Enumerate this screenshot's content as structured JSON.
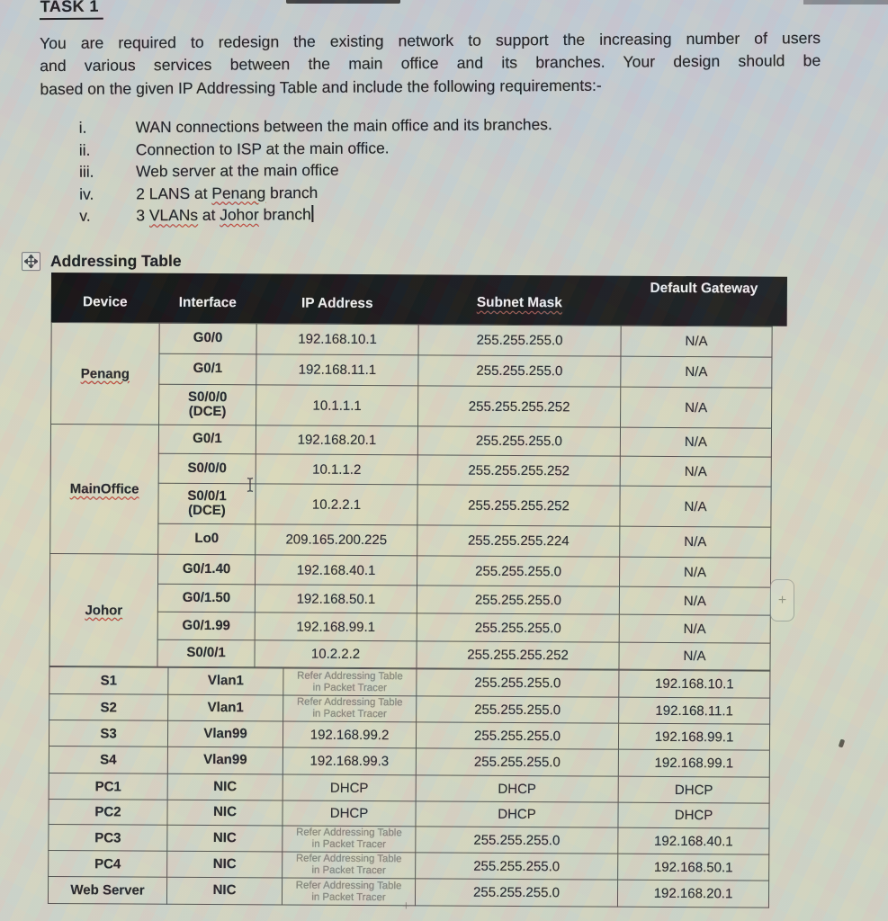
{
  "document": {
    "title": "TASK 1",
    "intro_lines": [
      "You are required to redesign the existing network to support the increasing number of users",
      "and various services between the main office and its branches. Your design should be",
      "based on the given IP Addressing Table and include the following requirements:-"
    ],
    "requirements": [
      {
        "numeral": "i.",
        "segments": [
          {
            "text": "WAN connections between the main office and its branches."
          }
        ]
      },
      {
        "numeral": "ii.",
        "segments": [
          {
            "text": "Connection to ISP at the main office."
          }
        ]
      },
      {
        "numeral": "iii.",
        "segments": [
          {
            "text": "Web server at the main office"
          }
        ]
      },
      {
        "numeral": "iv.",
        "segments": [
          {
            "text": "2 LANS at "
          },
          {
            "text": "Penang",
            "spellcheck": true
          },
          {
            "text": " branch"
          }
        ]
      },
      {
        "numeral": "v.",
        "segments": [
          {
            "text": "3 "
          },
          {
            "text": "VLANs",
            "spellcheck": true
          },
          {
            "text": " at "
          },
          {
            "text": "Johor",
            "spellcheck": true
          },
          {
            "text": " branch"
          }
        ],
        "caret": true
      }
    ]
  },
  "addressing_table": {
    "heading": "Addressing Table",
    "columns": [
      "Device",
      "Interface",
      "IP Address",
      "Subnet Mask",
      "Default Gateway"
    ],
    "router_rows": [
      {
        "device": "Penang",
        "rowspan": 3,
        "spellcheck": true,
        "interface": "G0/0",
        "ip": "192.168.10.1",
        "subnet": "255.255.255.0",
        "gateway": "N/A"
      },
      {
        "interface": "G0/1",
        "ip": "192.168.11.1",
        "subnet": "255.255.255.0",
        "gateway": "N/A"
      },
      {
        "interface": "S0/0/0\n(DCE)",
        "ip": "10.1.1.1",
        "subnet": "255.255.255.252",
        "gateway": "N/A"
      },
      {
        "device": "MainOffice",
        "rowspan": 4,
        "spellcheck": true,
        "interface": "G0/1",
        "ip": "192.168.20.1",
        "subnet": "255.255.255.0",
        "gateway": "N/A"
      },
      {
        "interface": "S0/0/0",
        "ip": "10.1.1.2",
        "subnet": "255.255.255.252",
        "gateway": "N/A"
      },
      {
        "interface": "S0/0/1\n(DCE)",
        "ip": "10.2.2.1",
        "subnet": "255.255.255.252",
        "gateway": "N/A"
      },
      {
        "interface": "Lo0",
        "ip": "209.165.200.225",
        "subnet": "255.255.255.224",
        "gateway": "N/A"
      },
      {
        "device": "Johor",
        "rowspan": 4,
        "spellcheck": true,
        "interface": "G0/1.40",
        "ip": "192.168.40.1",
        "subnet": "255.255.255.0",
        "gateway": "N/A"
      },
      {
        "interface": "G0/1.50",
        "ip": "192.168.50.1",
        "subnet": "255.255.255.0",
        "gateway": "N/A"
      },
      {
        "interface": "G0/1.99",
        "ip": "192.168.99.1",
        "subnet": "255.255.255.0",
        "gateway": "N/A"
      },
      {
        "interface": "S0/0/1",
        "ip": "10.2.2.2",
        "subnet": "255.255.255.252",
        "gateway": "N/A"
      }
    ],
    "device_rows": [
      {
        "device": "S1",
        "interface": "Vlan1",
        "ip": {
          "text": "Refer Addressing Table\nin Packet Tracer",
          "note": true
        },
        "subnet": "255.255.255.0",
        "gateway": "192.168.10.1"
      },
      {
        "device": "S2",
        "interface": "Vlan1",
        "ip": {
          "text": "Refer Addressing Table\nin Packet Tracer",
          "note": true
        },
        "subnet": "255.255.255.0",
        "gateway": "192.168.11.1"
      },
      {
        "device": "S3",
        "interface": "Vlan99",
        "ip": "192.168.99.2",
        "subnet": "255.255.255.0",
        "gateway": "192.168.99.1"
      },
      {
        "device": "S4",
        "interface": "Vlan99",
        "ip": "192.168.99.3",
        "subnet": "255.255.255.0",
        "gateway": "192.168.99.1"
      },
      {
        "device": "PC1",
        "interface": "NIC",
        "ip": "DHCP",
        "subnet": "DHCP",
        "gateway": "DHCP"
      },
      {
        "device": "PC2",
        "interface": "NIC",
        "ip": "DHCP",
        "subnet": "DHCP",
        "gateway": "DHCP"
      },
      {
        "device": "PC3",
        "interface": "NIC",
        "ip": {
          "text": "Refer Addressing Table\nin Packet Tracer",
          "note": true
        },
        "subnet": "255.255.255.0",
        "gateway": "192.168.40.1"
      },
      {
        "device": "PC4",
        "interface": "NIC",
        "ip": {
          "text": "Refer Addressing Table\nin Packet Tracer",
          "note": true
        },
        "subnet": "255.255.255.0",
        "gateway": "192.168.50.1"
      },
      {
        "device": "Web Server",
        "interface": "NIC",
        "ip": {
          "text": "Refer Addressing Table\nin Packet Tracer",
          "note": true
        },
        "subnet": "255.255.255.0",
        "gateway": "192.168.20.1"
      }
    ]
  },
  "icons": {
    "table_insert_handle": "+",
    "row_insert_handle": "+"
  }
}
